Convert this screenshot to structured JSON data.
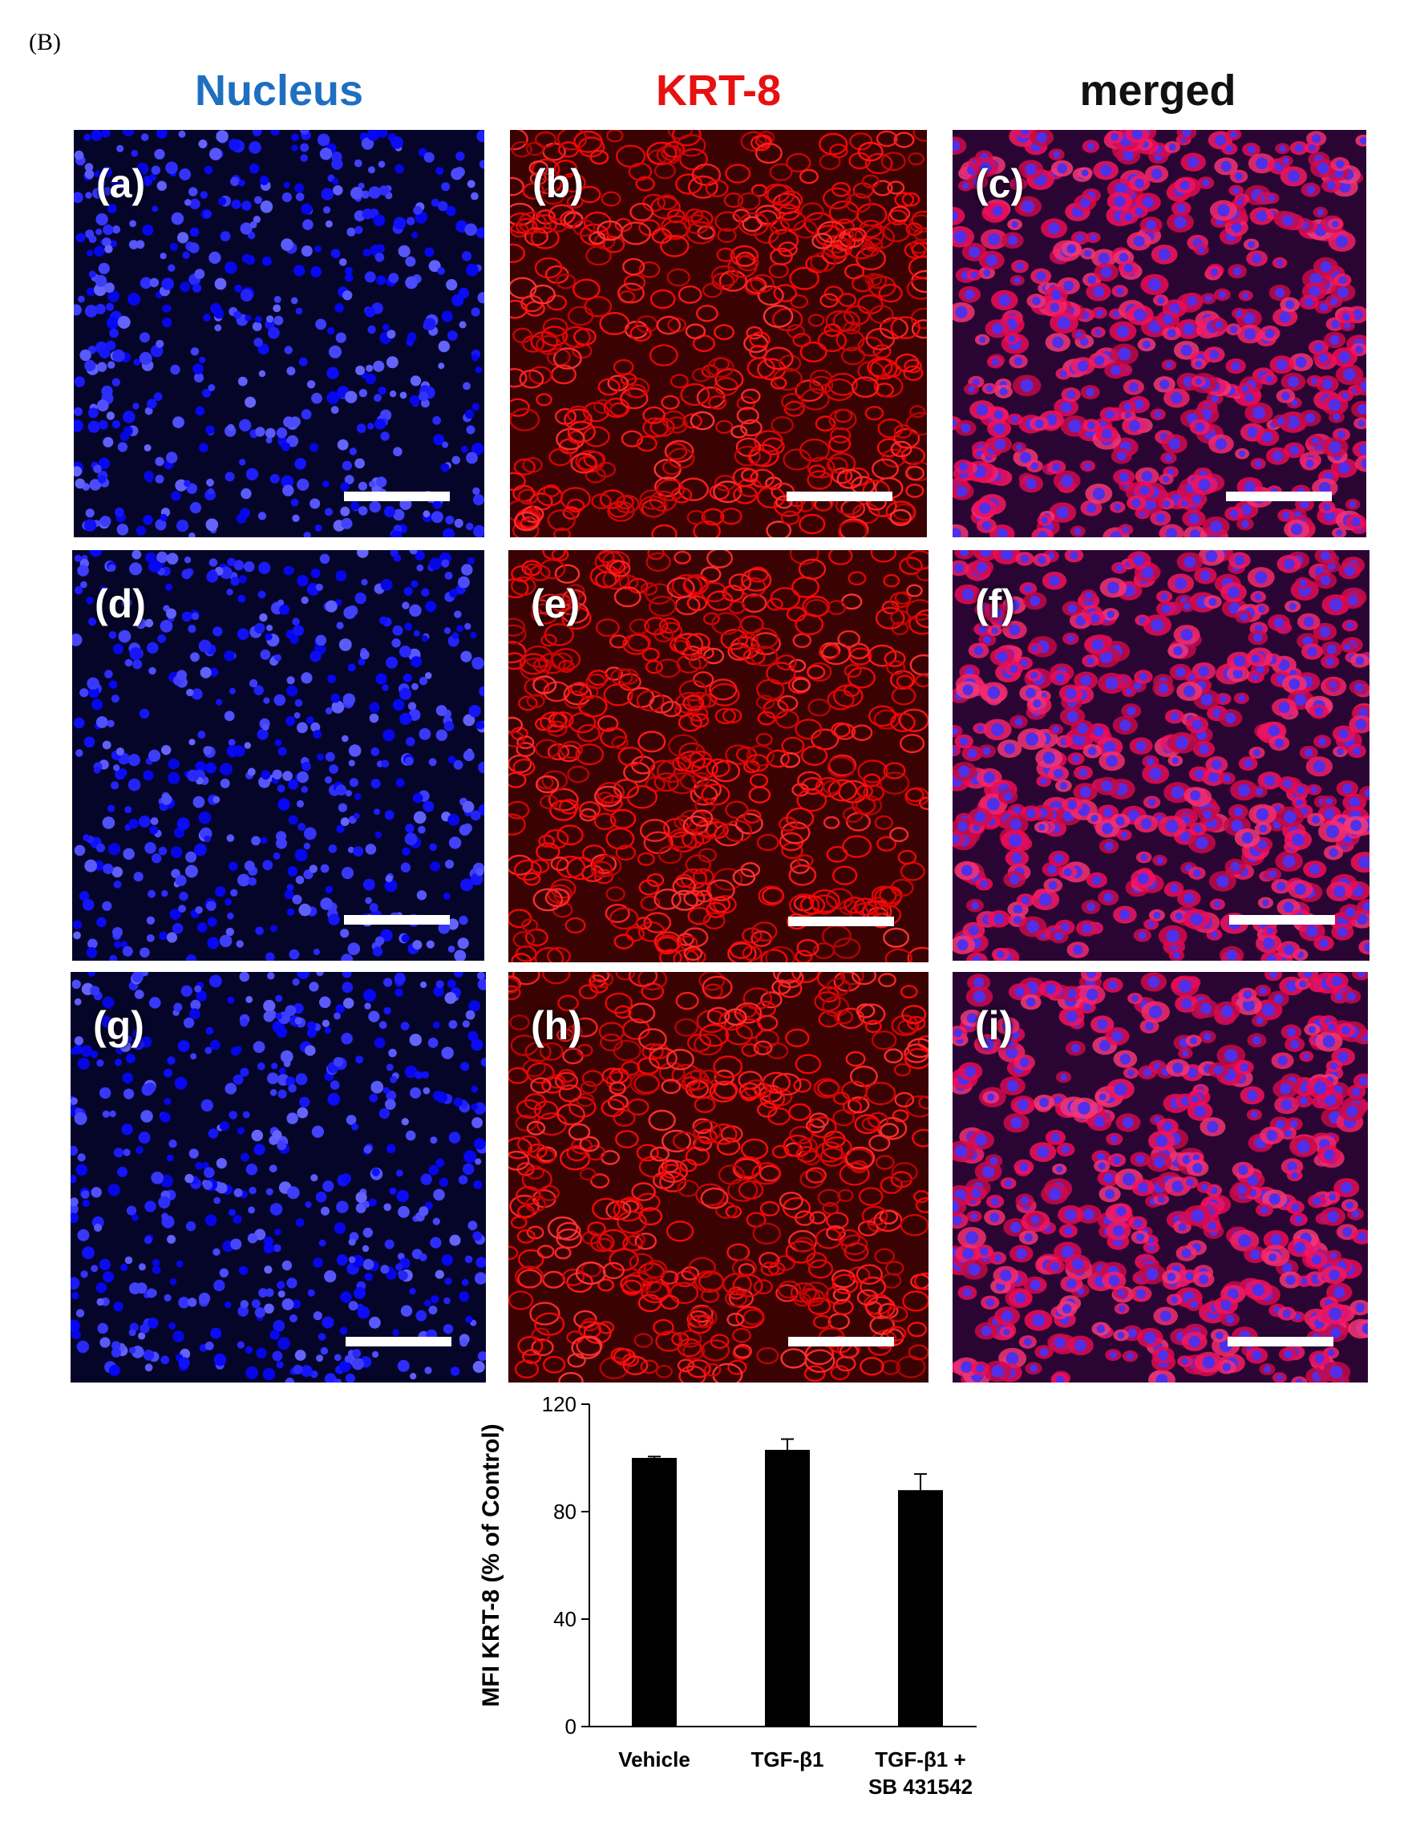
{
  "figure_label": "(B)",
  "column_headers": [
    {
      "label": "Nucleus",
      "color": "#1f6fc0"
    },
    {
      "label": "KRT-8",
      "color": "#e81010"
    },
    {
      "label": "merged",
      "color": "#111111"
    }
  ],
  "panels": [
    {
      "letter": "(a)",
      "channel": "nucleus"
    },
    {
      "letter": "(b)",
      "channel": "krt8"
    },
    {
      "letter": "(c)",
      "channel": "merged"
    },
    {
      "letter": "(d)",
      "channel": "nucleus"
    },
    {
      "letter": "(e)",
      "channel": "krt8"
    },
    {
      "letter": "(f)",
      "channel": "merged"
    },
    {
      "letter": "(g)",
      "channel": "nucleus"
    },
    {
      "letter": "(h)",
      "channel": "krt8"
    },
    {
      "letter": "(i)",
      "channel": "merged"
    }
  ],
  "chart_data": {
    "type": "bar",
    "categories": [
      "Vehicle",
      "TGF-β1",
      "TGF-β1 +\nSB 431542"
    ],
    "values": [
      100,
      103,
      88
    ],
    "errors": [
      0.5,
      4,
      6
    ],
    "ylabel": "MFI KRT-8 (% of Control)",
    "ylim": [
      0,
      120
    ],
    "yticks": [
      0,
      40,
      80,
      120
    ],
    "bar_color": "#000000",
    "grid": false
  }
}
